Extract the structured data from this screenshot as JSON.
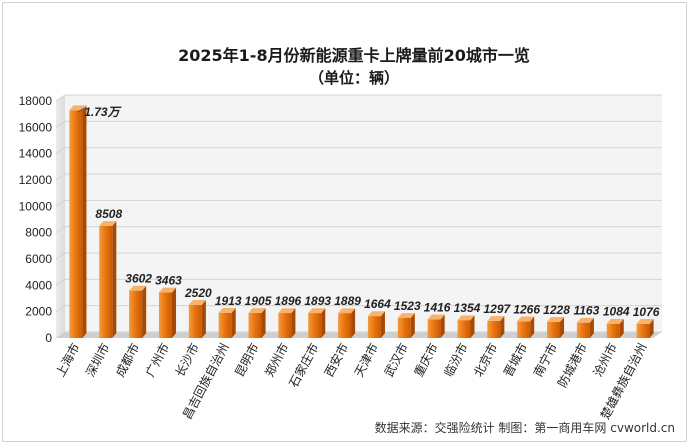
{
  "chart_data": {
    "type": "bar",
    "title": "2025年1-8月份新能源重卡上牌量前20城市一览",
    "subtitle": "（单位：辆）",
    "categories": [
      "上海市",
      "深圳市",
      "成都市",
      "广州市",
      "长沙市",
      "昌吉回族自治州",
      "昆明市",
      "郑州市",
      "石家庄市",
      "西安市",
      "天津市",
      "武汉市",
      "重庆市",
      "临汾市",
      "北京市",
      "晋城市",
      "南宁市",
      "防城港市",
      "沧州市",
      "楚雄彝族自治州"
    ],
    "values": [
      17300,
      8508,
      3602,
      3463,
      2520,
      1913,
      1905,
      1896,
      1893,
      1889,
      1664,
      1523,
      1416,
      1354,
      1297,
      1266,
      1228,
      1163,
      1084,
      1076
    ],
    "data_labels": [
      "1.73万",
      "8508",
      "3602",
      "3463",
      "2520",
      "1913",
      "1905",
      "1896",
      "1893",
      "1889",
      "1664",
      "1523",
      "1416",
      "1354",
      "1297",
      "1266",
      "1228",
      "1163",
      "1084",
      "1076"
    ],
    "ylim": [
      0,
      18000
    ],
    "yticks": [
      "0",
      "2000",
      "4000",
      "6000",
      "8000",
      "10000",
      "12000",
      "14000",
      "16000",
      "18000"
    ],
    "xlabel": "",
    "ylabel": "",
    "grid": true,
    "bar_color": "#e8730c",
    "source": "数据来源：交强险统计   制图：第一商用车网 cvworld.cn"
  }
}
